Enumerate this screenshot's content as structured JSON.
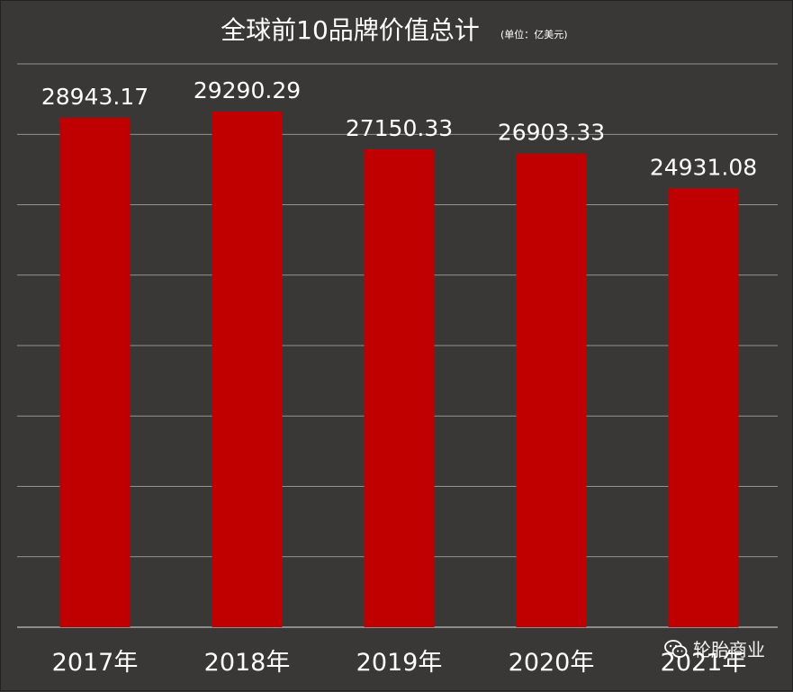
{
  "chart_data": {
    "type": "bar",
    "title": "全球前10品牌价值总计",
    "subtitle": "(单位：亿美元)",
    "categories": [
      "2017年",
      "2018年",
      "2019年",
      "2020年",
      "2021年"
    ],
    "values": [
      28943.17,
      29290.29,
      27150.33,
      26903.33,
      24931.08
    ],
    "value_labels": [
      "28943.17",
      "29290.29",
      "27150.33",
      "26903.33",
      "24931.08"
    ],
    "xlabel": "",
    "ylabel": "",
    "ylim": [
      0,
      32000
    ],
    "grid": true,
    "legend": "none",
    "colors": {
      "background": "#3a3837",
      "bar": "#c00000",
      "grid": "#d9d9d9",
      "text": "#ffffff"
    }
  },
  "watermark": {
    "icon": "wechat-icon",
    "text": "轮胎商业"
  }
}
